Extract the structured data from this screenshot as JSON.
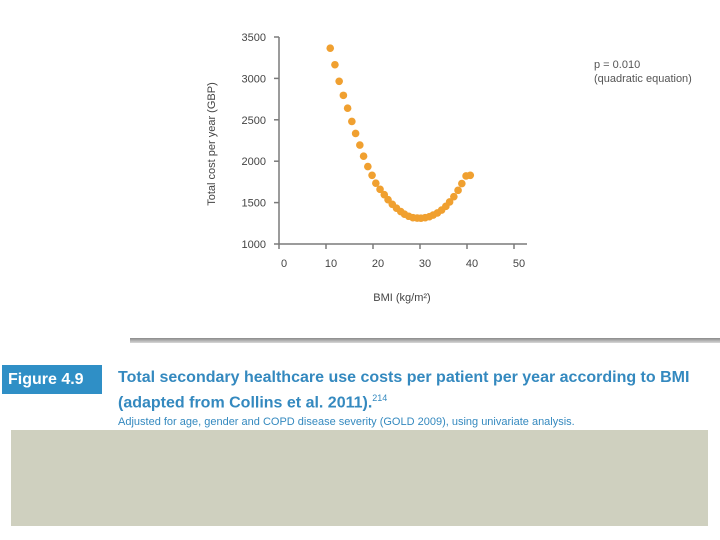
{
  "chart_data": {
    "type": "scatter",
    "title": "",
    "xlabel": "BMI (kg/m²)",
    "ylabel": "Total cost per year (GBP)",
    "xlim": [
      0,
      50
    ],
    "ylim": [
      1000,
      3500
    ],
    "xticks": [
      0,
      10,
      20,
      30,
      40,
      50
    ],
    "yticks": [
      1000,
      1500,
      2000,
      2500,
      3000,
      3500
    ],
    "x_tick_labels": [
      "0",
      "10",
      "20",
      "30",
      "40",
      "50"
    ],
    "y_tick_labels": [
      "1000",
      "1500",
      "2000",
      "2500",
      "3000",
      "3500"
    ],
    "point_color": "#f0a030",
    "points": [
      [
        10.9,
        3365
      ],
      [
        11.9,
        3165
      ],
      [
        12.8,
        2965
      ],
      [
        13.7,
        2795
      ],
      [
        14.6,
        2640
      ],
      [
        15.5,
        2480
      ],
      [
        16.3,
        2335
      ],
      [
        17.2,
        2195
      ],
      [
        18.0,
        2060
      ],
      [
        18.9,
        1935
      ],
      [
        19.8,
        1830
      ],
      [
        20.6,
        1735
      ],
      [
        21.5,
        1660
      ],
      [
        22.4,
        1595
      ],
      [
        23.2,
        1535
      ],
      [
        24.1,
        1480
      ],
      [
        25.0,
        1432
      ],
      [
        25.9,
        1392
      ],
      [
        26.7,
        1360
      ],
      [
        27.6,
        1335
      ],
      [
        28.5,
        1318
      ],
      [
        29.4,
        1313
      ],
      [
        30.2,
        1312
      ],
      [
        31.1,
        1318
      ],
      [
        32.0,
        1330
      ],
      [
        32.8,
        1349
      ],
      [
        33.7,
        1375
      ],
      [
        34.6,
        1410
      ],
      [
        35.5,
        1455
      ],
      [
        36.3,
        1508
      ],
      [
        37.2,
        1572
      ],
      [
        38.1,
        1648
      ],
      [
        38.9,
        1730
      ],
      [
        39.8,
        1822
      ],
      [
        40.7,
        1830
      ]
    ],
    "annotation_p": "p = 0.010",
    "annotation_method": "(quadratic equation)"
  },
  "figure": {
    "label": "Figure 4.9",
    "title_line1": "Total secondary healthcare use costs per patient per year according to BMI",
    "title_line2": "(adapted from Collins et al. 2011).",
    "title_ref": "214",
    "note": "Adjusted for age, gender and COPD disease severity (GOLD 2009), using univariate analysis."
  },
  "colors": {
    "accent_blue": "#3489bf",
    "label_blue": "#2f8fc6",
    "panel_gray": "#cfd0bf"
  }
}
